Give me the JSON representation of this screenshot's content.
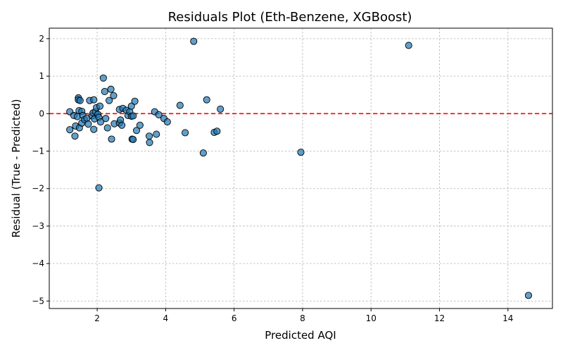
{
  "chart_data": {
    "type": "scatter",
    "title": "Residuals Plot (Eth-Benzene, XGBoost)",
    "xlabel": "Predicted AQI",
    "ylabel": "Residual (True - Predicted)",
    "xlim": [
      0.6,
      15.3
    ],
    "ylim": [
      -5.2,
      2.28
    ],
    "xticks": [
      2,
      4,
      6,
      8,
      10,
      12,
      14
    ],
    "yticks": [
      -5,
      -4,
      -3,
      -2,
      -1,
      0,
      1,
      2
    ],
    "grid": true,
    "reference_line": {
      "y": 0,
      "style": "dashed",
      "color": "#ff0000"
    },
    "point_color": "#1f77b4",
    "series": [
      {
        "points": [
          [
            1.2,
            0.05
          ],
          [
            1.2,
            -0.43
          ],
          [
            1.32,
            -0.05
          ],
          [
            1.35,
            -0.6
          ],
          [
            1.37,
            -0.33
          ],
          [
            1.42,
            -0.08
          ],
          [
            1.45,
            0.42
          ],
          [
            1.45,
            0.37
          ],
          [
            1.47,
            0.08
          ],
          [
            1.48,
            -0.38
          ],
          [
            1.5,
            0.35
          ],
          [
            1.55,
            0.06
          ],
          [
            1.55,
            -0.25
          ],
          [
            1.58,
            -0.05
          ],
          [
            1.63,
            -0.16
          ],
          [
            1.7,
            -0.12
          ],
          [
            1.74,
            -0.28
          ],
          [
            1.78,
            0.35
          ],
          [
            1.85,
            -0.06
          ],
          [
            1.88,
            0.02
          ],
          [
            1.9,
            0.37
          ],
          [
            1.9,
            -0.42
          ],
          [
            1.92,
            -0.14
          ],
          [
            1.95,
            0.05
          ],
          [
            1.98,
            0.16
          ],
          [
            2.02,
            -0.02
          ],
          [
            2.05,
            -0.1
          ],
          [
            2.05,
            -1.98
          ],
          [
            2.08,
            0.2
          ],
          [
            2.1,
            -0.22
          ],
          [
            2.18,
            0.95
          ],
          [
            2.22,
            0.59
          ],
          [
            2.25,
            -0.13
          ],
          [
            2.3,
            -0.38
          ],
          [
            2.35,
            0.35
          ],
          [
            2.4,
            0.65
          ],
          [
            2.42,
            -0.68
          ],
          [
            2.48,
            0.48
          ],
          [
            2.5,
            -0.27
          ],
          [
            2.65,
            0.11
          ],
          [
            2.65,
            -0.25
          ],
          [
            2.68,
            -0.17
          ],
          [
            2.72,
            -0.31
          ],
          [
            2.75,
            0.14
          ],
          [
            2.85,
            0.09
          ],
          [
            2.9,
            -0.05
          ],
          [
            2.95,
            0.05
          ],
          [
            3.0,
            0.2
          ],
          [
            3.0,
            -0.07
          ],
          [
            3.02,
            -0.68
          ],
          [
            3.05,
            -0.69
          ],
          [
            3.05,
            -0.06
          ],
          [
            3.1,
            0.33
          ],
          [
            3.15,
            -0.45
          ],
          [
            3.25,
            -0.31
          ],
          [
            3.52,
            -0.6
          ],
          [
            3.53,
            -0.77
          ],
          [
            3.68,
            0.05
          ],
          [
            3.73,
            -0.55
          ],
          [
            3.8,
            -0.03
          ],
          [
            3.95,
            -0.13
          ],
          [
            4.05,
            -0.22
          ],
          [
            4.42,
            0.22
          ],
          [
            4.57,
            -0.51
          ],
          [
            4.82,
            1.93
          ],
          [
            5.1,
            -1.05
          ],
          [
            5.2,
            0.37
          ],
          [
            5.42,
            -0.5
          ],
          [
            5.5,
            -0.47
          ],
          [
            5.6,
            0.12
          ],
          [
            7.95,
            -1.03
          ],
          [
            11.1,
            1.82
          ],
          [
            14.6,
            -4.85
          ]
        ]
      }
    ]
  }
}
